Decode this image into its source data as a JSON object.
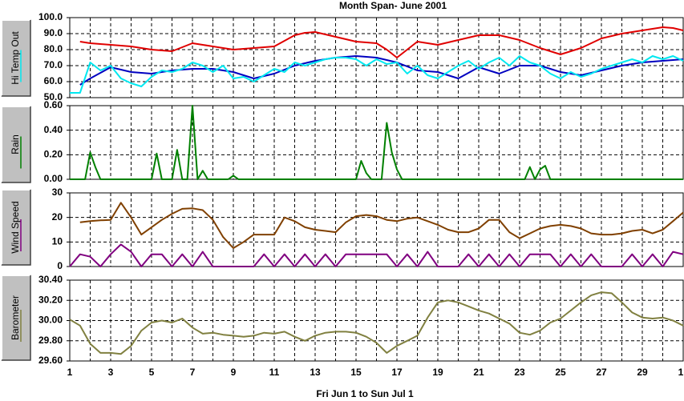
{
  "title": "Month Span- June 2001",
  "xlabel": "Fri Jun 1  to  Sun Jul 1",
  "xlim": [
    1,
    31
  ],
  "xticks": [
    1,
    3,
    5,
    7,
    9,
    11,
    13,
    15,
    17,
    19,
    21,
    23,
    25,
    27,
    29,
    {
      "value": 31,
      "label": "1"
    }
  ],
  "chart_data": [
    {
      "type": "line",
      "ylabel": "Hi Temp Out",
      "ylim": [
        50,
        100
      ],
      "yticks": [
        {
          "value": 50,
          "label": "50.0"
        },
        {
          "value": 60,
          "label": "60.0"
        },
        {
          "value": 70,
          "label": "70.0"
        },
        {
          "value": 80,
          "label": "80.0"
        },
        {
          "value": 90,
          "label": "90.0"
        },
        {
          "value": 100,
          "label": "100.0"
        }
      ],
      "grid": true,
      "x": [
        1,
        1.5,
        2,
        2.5,
        3,
        3.5,
        4,
        4.5,
        5,
        5.5,
        6,
        6.5,
        7,
        7.5,
        8,
        8.5,
        9,
        9.5,
        10,
        10.5,
        11,
        11.5,
        12,
        12.5,
        13,
        13.5,
        14,
        14.5,
        15,
        15.5,
        16,
        16.5,
        17,
        17.5,
        18,
        18.5,
        19,
        19.5,
        20,
        20.5,
        21,
        21.5,
        22,
        22.5,
        23,
        23.5,
        24,
        24.5,
        25,
        25.5,
        26,
        26.5,
        27,
        27.5,
        28,
        28.5,
        29,
        29.5,
        30,
        30.5,
        31
      ],
      "series": [
        {
          "color": "#e00000",
          "values": [
            null,
            85,
            84,
            83.5,
            83,
            82.5,
            82,
            81,
            80,
            79.5,
            79,
            81.5,
            84,
            83,
            82,
            81,
            80,
            80.5,
            81,
            81.5,
            82,
            85.5,
            89,
            90.5,
            91,
            89.5,
            88,
            86.5,
            85,
            84.5,
            84,
            80,
            75,
            80,
            85,
            84,
            83,
            84.5,
            86,
            87.5,
            89,
            89,
            89,
            87.5,
            86,
            83.5,
            81,
            79,
            77,
            79,
            81,
            84,
            87,
            88.5,
            90,
            91,
            92,
            93,
            94,
            93.5,
            92
          ]
        },
        {
          "color": "#0000c0",
          "values": [
            null,
            58,
            62,
            65.5,
            69,
            67.5,
            66,
            65.5,
            65,
            66,
            67,
            67.5,
            68,
            68,
            68,
            67,
            66,
            64,
            62,
            63.5,
            65,
            67.5,
            70,
            71.5,
            73,
            74,
            75,
            75.5,
            76,
            75.5,
            75,
            73.5,
            72,
            69.5,
            67,
            66.5,
            66,
            64,
            62,
            65.5,
            69,
            67,
            65,
            67.5,
            70,
            70,
            70,
            68,
            66,
            65,
            64,
            65.5,
            67,
            68.5,
            70,
            71,
            72,
            72.5,
            73,
            73.5,
            74
          ]
        },
        {
          "color": "#00e8f0",
          "values": [
            53,
            53,
            72,
            67,
            70,
            62,
            59,
            57,
            63,
            67,
            66,
            68,
            72,
            70,
            66,
            70,
            62,
            63,
            60,
            64,
            68,
            66,
            72,
            70,
            72,
            74,
            75,
            75,
            74,
            70,
            74,
            71,
            72,
            65,
            70,
            64,
            62,
            66,
            70,
            73,
            68,
            72,
            75,
            70,
            76,
            72,
            70,
            65,
            62,
            66,
            63,
            65,
            68,
            70,
            72,
            74,
            72,
            76,
            74,
            76,
            73
          ]
        }
      ]
    },
    {
      "type": "line",
      "ylabel": "Rain",
      "ylim": [
        0,
        0.6
      ],
      "yticks": [
        {
          "value": 0,
          "label": "0.00"
        },
        {
          "value": 0.2,
          "label": "0.20"
        },
        {
          "value": 0.4,
          "label": "0.40"
        },
        {
          "value": 0.6,
          "label": "0.60"
        }
      ],
      "grid": true,
      "x": [
        1,
        1.25,
        1.5,
        1.75,
        2,
        2.25,
        2.5,
        2.75,
        3,
        3.25,
        3.5,
        3.75,
        4,
        4.25,
        4.5,
        4.75,
        5,
        5.25,
        5.5,
        5.75,
        6,
        6.25,
        6.5,
        6.75,
        7,
        7.25,
        7.5,
        7.75,
        8,
        8.25,
        8.5,
        8.75,
        9,
        9.25,
        9.5,
        9.75,
        10,
        10.25,
        10.5,
        10.75,
        11,
        11.25,
        11.5,
        11.75,
        12,
        12.25,
        12.5,
        12.75,
        13,
        13.25,
        13.5,
        13.75,
        14,
        14.25,
        14.5,
        14.75,
        15,
        15.25,
        15.5,
        15.75,
        16,
        16.25,
        16.5,
        16.75,
        17,
        17.25,
        17.5,
        17.75,
        18,
        18.25,
        18.5,
        18.75,
        19,
        19.25,
        19.5,
        19.75,
        20,
        20.25,
        20.5,
        20.75,
        21,
        21.25,
        21.5,
        21.75,
        22,
        22.25,
        22.5,
        22.75,
        23,
        23.25,
        23.5,
        23.75,
        24,
        24.25,
        24.5,
        24.75,
        25,
        25.25,
        25.5,
        25.75,
        26,
        26.25,
        26.5,
        26.75,
        27,
        27.25,
        27.5,
        27.75,
        28,
        28.25,
        28.5,
        28.75,
        29,
        29.25,
        29.5,
        29.75,
        30,
        30.25,
        30.5,
        30.75,
        31
      ],
      "series": [
        {
          "color": "#008000",
          "values": [
            0,
            0,
            0,
            0,
            0.22,
            0.1,
            0,
            0,
            0,
            0,
            0,
            0,
            0,
            0,
            0,
            0,
            0,
            0.21,
            0,
            0,
            0,
            0.24,
            0,
            0,
            0.6,
            0,
            0.07,
            0,
            0,
            0,
            0,
            0,
            0.03,
            0,
            0,
            0,
            0,
            0,
            0,
            0,
            0,
            0,
            0,
            0,
            0,
            0,
            0,
            0,
            0,
            0,
            0,
            0,
            0,
            0,
            0,
            0,
            0,
            0.15,
            0.05,
            0,
            0,
            0,
            0.46,
            0.22,
            0.08,
            0,
            0,
            0,
            0,
            0,
            0,
            0,
            0,
            0,
            0,
            0,
            0,
            0,
            0,
            0,
            0,
            0,
            0,
            0,
            0,
            0,
            0,
            0,
            0,
            0,
            0.1,
            0,
            0.08,
            0.11,
            0,
            0,
            0,
            0,
            0,
            0,
            0,
            0,
            0,
            0,
            0,
            0,
            0,
            0,
            0,
            0,
            0,
            0,
            0,
            0,
            0,
            0,
            0,
            0,
            0,
            0,
            0
          ]
        }
      ]
    },
    {
      "type": "line",
      "ylabel": "Wind Speed",
      "ylim": [
        0,
        30
      ],
      "yticks": [
        0,
        10,
        20,
        30
      ],
      "grid": true,
      "x": [
        1,
        1.5,
        2,
        2.5,
        3,
        3.5,
        4,
        4.5,
        5,
        5.5,
        6,
        6.5,
        7,
        7.5,
        8,
        8.5,
        9,
        9.5,
        10,
        10.5,
        11,
        11.5,
        12,
        12.5,
        13,
        13.5,
        14,
        14.5,
        15,
        15.5,
        16,
        16.5,
        17,
        17.5,
        18,
        18.5,
        19,
        19.5,
        20,
        20.5,
        21,
        21.5,
        22,
        22.5,
        23,
        23.5,
        24,
        24.5,
        25,
        25.5,
        26,
        26.5,
        27,
        27.5,
        28,
        28.5,
        29,
        29.5,
        30,
        30.5,
        31
      ],
      "series": [
        {
          "color": "#804000",
          "values": [
            null,
            18,
            18.5,
            18.8,
            19,
            26,
            20,
            13,
            16,
            19,
            21.5,
            23.5,
            23.7,
            23,
            19,
            12,
            7.5,
            10,
            13,
            13,
            13,
            20,
            18.5,
            16,
            15,
            14.5,
            14,
            18,
            20.5,
            21,
            20.5,
            19,
            18.5,
            19.5,
            20,
            18.5,
            17,
            15,
            14,
            14,
            15.5,
            19,
            19,
            14,
            11.5,
            13.5,
            15.5,
            16.5,
            17,
            16.5,
            15.5,
            13.5,
            13,
            13,
            13.5,
            14.5,
            15,
            13.5,
            15,
            18.5,
            22
          ]
        },
        {
          "color": "#800080",
          "values": [
            0,
            5,
            4,
            0,
            5,
            9,
            6,
            0,
            5,
            5,
            0,
            5,
            0,
            6,
            0,
            0,
            0,
            0,
            0,
            5,
            0,
            5,
            0,
            5,
            0,
            5,
            0,
            5,
            5,
            5,
            5,
            5,
            0,
            5,
            0,
            6,
            0,
            0,
            0,
            5,
            0,
            5,
            0,
            5,
            0,
            5,
            5,
            5,
            0,
            5,
            0,
            5,
            0,
            0,
            0,
            5,
            0,
            5,
            0,
            6,
            5
          ]
        }
      ]
    },
    {
      "type": "line",
      "ylabel": "Barometer",
      "ylim": [
        29.6,
        30.4
      ],
      "yticks": [
        {
          "value": 29.6,
          "label": "29.60"
        },
        {
          "value": 29.8,
          "label": "29.80"
        },
        {
          "value": 30.0,
          "label": "30.00"
        },
        {
          "value": 30.2,
          "label": "30.20"
        },
        {
          "value": 30.4,
          "label": "30.40"
        }
      ],
      "grid": true,
      "x": [
        1,
        1.5,
        2,
        2.5,
        3,
        3.5,
        4,
        4.5,
        5,
        5.5,
        6,
        6.5,
        7,
        7.5,
        8,
        8.5,
        9,
        9.5,
        10,
        10.5,
        11,
        11.5,
        12,
        12.5,
        13,
        13.5,
        14,
        14.5,
        15,
        15.5,
        16,
        16.5,
        17,
        17.5,
        18,
        18.5,
        19,
        19.5,
        20,
        20.5,
        21,
        21.5,
        22,
        22.5,
        23,
        23.5,
        24,
        24.5,
        25,
        25.5,
        26,
        26.5,
        27,
        27.5,
        28,
        28.5,
        29,
        29.5,
        30,
        30.5,
        31
      ],
      "series": [
        {
          "color": "#808040",
          "values": [
            30.01,
            29.95,
            29.77,
            29.68,
            29.68,
            29.67,
            29.75,
            29.9,
            29.98,
            30.0,
            29.98,
            30.02,
            29.93,
            29.87,
            29.88,
            29.86,
            29.85,
            29.84,
            29.85,
            29.88,
            29.87,
            29.89,
            29.84,
            29.8,
            29.85,
            29.88,
            29.89,
            29.89,
            29.88,
            29.84,
            29.78,
            29.68,
            29.75,
            29.8,
            29.85,
            30.03,
            30.18,
            30.2,
            30.18,
            30.14,
            30.1,
            30.07,
            30.02,
            29.97,
            29.88,
            29.86,
            29.9,
            29.98,
            30.02,
            30.1,
            30.18,
            30.25,
            30.28,
            30.27,
            30.18,
            30.08,
            30.03,
            30.02,
            30.03,
            30.0,
            29.95
          ]
        }
      ]
    }
  ]
}
